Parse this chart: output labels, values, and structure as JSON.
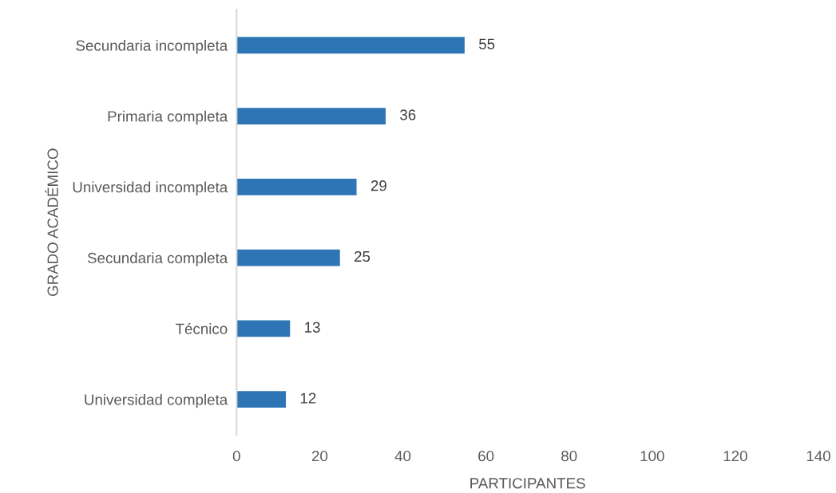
{
  "chart_data": {
    "type": "bar",
    "orientation": "horizontal",
    "xlabel": "PARTICIPANTES",
    "ylabel": "GRADO ACADÉMICO",
    "categories": [
      "Secundaria incompleta",
      "Primaria completa",
      "Universidad incompleta",
      "Secundaria completa",
      "Técnico",
      "Universidad completa"
    ],
    "values": [
      55,
      36,
      29,
      25,
      13,
      12
    ],
    "color": "#2e75b6",
    "xlim": [
      0,
      140
    ],
    "xticks": [
      0,
      20,
      40,
      60,
      80,
      100,
      120,
      140
    ],
    "data_labels": true,
    "grid": false,
    "legend": false
  }
}
